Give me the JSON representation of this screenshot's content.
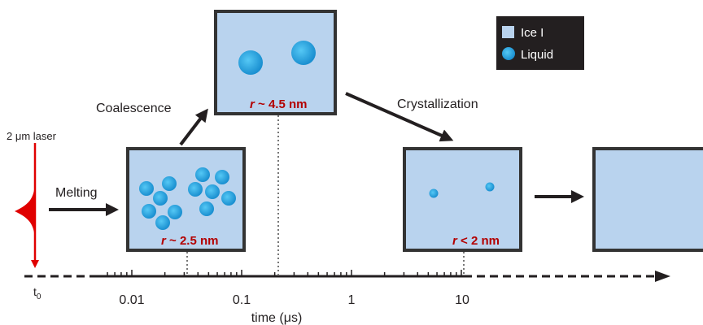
{
  "laser_label": "2 μm laser",
  "steps": [
    {
      "label": "Melting"
    },
    {
      "label": "Coalescence"
    },
    {
      "label": "Crystallization"
    }
  ],
  "boxes": [
    {
      "r": "r",
      "size": "~ 2.5 nm"
    },
    {
      "r": "r",
      "size": "~ 4.5 nm"
    },
    {
      "r": "r",
      "size": "< 2 nm"
    }
  ],
  "legend": [
    "Ice I",
    "Liquid"
  ],
  "axis": {
    "origin": "t",
    "origin_sub": "0",
    "ticks": [
      "0.01",
      "0.1",
      "1",
      "10"
    ],
    "label": "time (μs)"
  }
}
